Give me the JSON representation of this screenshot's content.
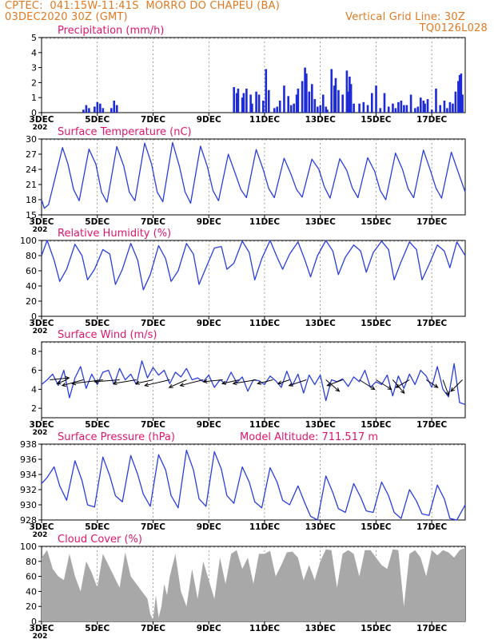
{
  "header": {
    "line1": "CPTEC:  041:15W-11:41S  MORRO DO CHAPEU (BA)",
    "line2": "03DEC2020 30Z (GMT)",
    "grid_note": "Vertical Grid Line: 30Z",
    "code": "TQ0126L028",
    "model_altitude": "Model Altitude: 711.517 m"
  },
  "colors": {
    "header": "#e07a22",
    "panel_title": "#e0156e",
    "line": "#2a3ee0",
    "bar": "#1c2ad8",
    "cloud": "#a8a8a8",
    "vector": "#000000"
  },
  "x_axis": {
    "tick_labels": [
      "3DEC",
      "5DEC",
      "7DEC",
      "9DEC",
      "11DEC",
      "13DEC",
      "15DEC",
      "17DEC"
    ],
    "tick_days": [
      0,
      2,
      4,
      6,
      8,
      10,
      12,
      14
    ],
    "range_days": [
      0,
      15.2
    ],
    "start_label_year": "202"
  },
  "chart_data": [
    {
      "type": "bar",
      "title": "Precipitation (mm/h)",
      "ylim": [
        0,
        5
      ],
      "yticks": [
        "0",
        "1",
        "2",
        "3",
        "4",
        "5"
      ],
      "x": [
        1.5,
        1.6,
        1.7,
        1.9,
        2.0,
        2.1,
        2.2,
        2.5,
        2.6,
        2.7,
        6.9,
        7.0,
        7.05,
        7.2,
        7.25,
        7.35,
        7.5,
        7.55,
        7.7,
        7.8,
        7.95,
        8.05,
        8.15,
        8.35,
        8.45,
        8.55,
        8.7,
        8.85,
        8.95,
        9.05,
        9.15,
        9.2,
        9.35,
        9.45,
        9.5,
        9.6,
        9.7,
        9.8,
        9.9,
        10.0,
        10.1,
        10.2,
        10.25,
        10.4,
        10.5,
        10.55,
        10.65,
        10.8,
        10.95,
        11.0,
        11.05,
        11.1,
        11.2,
        11.4,
        11.55,
        11.7,
        11.85,
        12.0,
        12.15,
        12.3,
        12.45,
        12.6,
        12.7,
        12.8,
        12.9,
        13.0,
        13.1,
        13.25,
        13.4,
        13.5,
        13.6,
        13.7,
        13.75,
        13.85,
        14.0,
        14.15,
        14.3,
        14.45,
        14.55,
        14.65,
        14.75,
        14.85,
        14.95,
        15.0,
        15.05,
        15.1
      ],
      "values": [
        0.2,
        0.5,
        0.3,
        0.4,
        0.7,
        0.6,
        0.3,
        0.3,
        0.8,
        0.5,
        1.7,
        1.3,
        1.6,
        1.0,
        1.3,
        1.6,
        1.2,
        0.6,
        1.4,
        1.2,
        0.8,
        2.9,
        1.5,
        0.3,
        0.4,
        0.8,
        1.8,
        1.1,
        0.5,
        0.6,
        1.2,
        1.6,
        2.1,
        3.0,
        2.6,
        1.4,
        1.9,
        0.9,
        0.4,
        0.5,
        1.2,
        0.4,
        0.2,
        2.9,
        1.8,
        2.3,
        1.5,
        1.2,
        2.8,
        1.4,
        2.4,
        1.9,
        0.6,
        0.6,
        0.7,
        0.5,
        1.3,
        1.8,
        0.3,
        1.3,
        0.4,
        0.6,
        0.3,
        0.7,
        0.8,
        0.5,
        0.5,
        1.2,
        0.3,
        0.4,
        1.0,
        0.8,
        0.6,
        0.9,
        0.2,
        1.6,
        0.5,
        0.8,
        0.3,
        0.7,
        0.6,
        1.4,
        2.1,
        2.5,
        2.6,
        1.2
      ]
    },
    {
      "type": "line",
      "title": "Surface Temperature (nC)",
      "ylim": [
        15,
        30
      ],
      "yticks": [
        "15",
        "18",
        "21",
        "24",
        "27",
        "30"
      ],
      "x": [
        0.0,
        0.1,
        0.25,
        0.45,
        0.75,
        0.95,
        1.15,
        1.35,
        1.7,
        1.95,
        2.15,
        2.35,
        2.7,
        2.95,
        3.15,
        3.35,
        3.7,
        3.95,
        4.15,
        4.35,
        4.7,
        4.95,
        5.15,
        5.35,
        5.7,
        5.95,
        6.15,
        6.35,
        6.7,
        6.95,
        7.15,
        7.35,
        7.7,
        7.95,
        8.15,
        8.35,
        8.7,
        8.95,
        9.15,
        9.35,
        9.7,
        9.95,
        10.15,
        10.35,
        10.7,
        10.95,
        11.15,
        11.35,
        11.7,
        11.95,
        12.15,
        12.35,
        12.7,
        12.95,
        13.15,
        13.35,
        13.7,
        13.95,
        14.15,
        14.35,
        14.7,
        14.95,
        15.2
      ],
      "values": [
        18.0,
        16.3,
        17.0,
        21.5,
        28.3,
        25.0,
        20.0,
        17.8,
        28.0,
        25.0,
        19.5,
        17.5,
        28.5,
        24.6,
        19.5,
        17.8,
        29.2,
        25.0,
        19.5,
        17.6,
        29.3,
        24.5,
        19.5,
        17.3,
        28.6,
        24.5,
        19.8,
        17.8,
        27.0,
        23.2,
        20.0,
        18.4,
        27.9,
        24.0,
        20.2,
        18.4,
        26.2,
        23.0,
        20.0,
        18.5,
        26.0,
        24.0,
        20.5,
        18.3,
        26.1,
        23.8,
        20.3,
        18.4,
        26.3,
        23.6,
        19.8,
        18.0,
        27.2,
        24.0,
        20.2,
        18.4,
        27.8,
        23.8,
        20.3,
        18.3,
        27.4,
        23.4,
        19.5
      ]
    },
    {
      "type": "line",
      "title": "Relative Humidity (%)",
      "ylim": [
        0,
        100
      ],
      "yticks": [
        "0",
        "20",
        "40",
        "60",
        "80",
        "100"
      ],
      "x": [
        0.0,
        0.2,
        0.45,
        0.65,
        0.9,
        1.2,
        1.45,
        1.65,
        1.9,
        2.2,
        2.45,
        2.65,
        2.9,
        3.2,
        3.45,
        3.65,
        3.9,
        4.2,
        4.45,
        4.65,
        4.9,
        5.2,
        5.45,
        5.65,
        5.9,
        6.2,
        6.45,
        6.65,
        6.9,
        7.2,
        7.45,
        7.65,
        7.9,
        8.2,
        8.45,
        8.65,
        8.9,
        9.2,
        9.45,
        9.65,
        9.9,
        10.2,
        10.45,
        10.65,
        10.9,
        11.2,
        11.45,
        11.65,
        11.9,
        12.2,
        12.45,
        12.65,
        12.9,
        13.2,
        13.45,
        13.65,
        13.9,
        14.2,
        14.45,
        14.65,
        14.9,
        15.2
      ],
      "values": [
        80,
        100,
        74,
        46,
        62,
        95,
        80,
        48,
        62,
        88,
        82,
        42,
        62,
        96,
        74,
        35,
        55,
        93,
        76,
        46,
        60,
        96,
        82,
        42,
        64,
        90,
        92,
        62,
        70,
        99,
        84,
        48,
        76,
        100,
        78,
        62,
        82,
        98,
        74,
        52,
        80,
        100,
        86,
        55,
        78,
        94,
        86,
        58,
        84,
        99,
        88,
        48,
        72,
        98,
        88,
        48,
        68,
        94,
        86,
        64,
        98,
        80
      ]
    },
    {
      "type": "line",
      "title": "Surface Wind (m/s)",
      "ylim": [
        1,
        9
      ],
      "yticks": [
        "2",
        "4",
        "6",
        "8"
      ],
      "x": [
        0.0,
        0.2,
        0.4,
        0.6,
        0.8,
        1.0,
        1.2,
        1.4,
        1.6,
        1.8,
        2.0,
        2.2,
        2.4,
        2.6,
        2.8,
        3.0,
        3.2,
        3.4,
        3.6,
        3.8,
        4.0,
        4.2,
        4.4,
        4.6,
        4.8,
        5.0,
        5.2,
        5.4,
        5.6,
        5.8,
        6.0,
        6.2,
        6.4,
        6.6,
        6.8,
        7.0,
        7.2,
        7.4,
        7.6,
        7.8,
        8.0,
        8.2,
        8.4,
        8.6,
        8.8,
        9.0,
        9.2,
        9.4,
        9.6,
        9.8,
        10.0,
        10.2,
        10.4,
        10.6,
        10.8,
        11.0,
        11.2,
        11.4,
        11.6,
        11.8,
        12.0,
        12.2,
        12.4,
        12.6,
        12.8,
        13.0,
        13.2,
        13.4,
        13.6,
        13.8,
        14.0,
        14.2,
        14.4,
        14.6,
        14.8,
        15.0,
        15.2
      ],
      "values": [
        4.5,
        5.0,
        5.6,
        4.4,
        6.0,
        3.1,
        5.2,
        6.4,
        4.1,
        5.6,
        4.5,
        5.8,
        6.0,
        4.5,
        6.2,
        5.0,
        5.6,
        4.5,
        7.0,
        5.2,
        6.3,
        5.5,
        6.0,
        4.6,
        5.8,
        5.3,
        6.2,
        5.0,
        5.2,
        4.8,
        5.5,
        4.2,
        5.0,
        4.6,
        5.8,
        4.7,
        5.3,
        3.8,
        5.0,
        4.9,
        4.5,
        5.4,
        4.9,
        4.2,
        5.9,
        4.4,
        5.6,
        3.6,
        5.5,
        4.5,
        5.5,
        2.8,
        5.0,
        4.8,
        5.1,
        4.3,
        5.3,
        4.8,
        6.0,
        4.2,
        4.8,
        4.5,
        5.5,
        3.3,
        5.4,
        4.1,
        5.6,
        4.5,
        6.0,
        5.4,
        4.2,
        6.4,
        4.0,
        3.2,
        6.7,
        2.6,
        2.4
      ],
      "vectors": {
        "x": [
          0.3,
          0.9,
          1.5,
          2.2,
          2.8,
          3.4,
          4.0,
          4.6,
          5.2,
          5.8,
          6.5,
          7.1,
          7.7,
          8.3,
          8.9,
          9.5,
          10.2,
          10.8,
          11.4,
          12.0,
          12.6,
          13.2,
          13.8,
          14.4,
          15.1
        ],
        "u": [
          1.0,
          -0.5,
          -1.1,
          -1.6,
          -1.3,
          -1.2,
          -0.9,
          -1.3,
          -0.9,
          -1.2,
          -1.0,
          -0.9,
          -1.2,
          -0.8,
          -0.6,
          -0.9,
          0.7,
          -0.8,
          0.8,
          0.8,
          0.6,
          -0.7,
          0.6,
          0.3,
          -0.6
        ],
        "v": [
          0.1,
          -0.2,
          -0.3,
          -0.2,
          -0.1,
          -0.2,
          -0.2,
          -0.3,
          -0.4,
          -0.3,
          -0.1,
          -0.2,
          -0.2,
          -0.2,
          -0.2,
          -0.3,
          -0.6,
          -0.3,
          -0.5,
          -0.5,
          -0.7,
          -0.4,
          -0.4,
          -0.8,
          -0.6
        ]
      }
    },
    {
      "type": "line",
      "title": "Surface Pressure (hPa)",
      "ylim": [
        928,
        938
      ],
      "yticks": [
        "928",
        "930",
        "932",
        "934",
        "936",
        "938"
      ],
      "x": [
        0.0,
        0.2,
        0.45,
        0.65,
        0.9,
        1.2,
        1.45,
        1.65,
        1.9,
        2.2,
        2.45,
        2.65,
        2.9,
        3.2,
        3.45,
        3.65,
        3.9,
        4.2,
        4.45,
        4.65,
        4.9,
        5.2,
        5.45,
        5.65,
        5.9,
        6.2,
        6.45,
        6.65,
        6.9,
        7.2,
        7.45,
        7.65,
        7.9,
        8.2,
        8.45,
        8.65,
        8.9,
        9.2,
        9.45,
        9.65,
        9.9,
        10.2,
        10.45,
        10.65,
        10.9,
        11.2,
        11.45,
        11.65,
        11.9,
        12.2,
        12.45,
        12.65,
        12.9,
        13.2,
        13.45,
        13.65,
        13.9,
        14.2,
        14.45,
        14.65,
        14.9,
        15.2
      ],
      "values": [
        932.8,
        933.6,
        935.0,
        932.5,
        930.6,
        935.8,
        933.2,
        930.0,
        929.7,
        936.3,
        933.8,
        931.2,
        930.4,
        936.5,
        934.0,
        931.4,
        929.8,
        936.6,
        934.6,
        931.2,
        929.6,
        937.2,
        934.6,
        930.8,
        929.8,
        937.0,
        934.7,
        931.2,
        930.2,
        935.0,
        933.0,
        930.4,
        929.6,
        934.9,
        933.0,
        930.6,
        930.0,
        932.5,
        930.2,
        928.5,
        928.0,
        933.8,
        931.6,
        929.5,
        929.0,
        932.8,
        931.0,
        929.2,
        929.0,
        933.0,
        931.2,
        929.0,
        928.2,
        932.0,
        930.5,
        928.8,
        928.6,
        932.6,
        930.8,
        928.2,
        928.0,
        930.0
      ]
    },
    {
      "type": "area",
      "title": "Cloud Cover (%)",
      "ylim": [
        0,
        100
      ],
      "yticks": [
        "0",
        "20",
        "40",
        "60",
        "80",
        "100"
      ],
      "x": [
        0.0,
        0.2,
        0.4,
        0.6,
        0.8,
        1.0,
        1.2,
        1.4,
        1.6,
        1.8,
        2.0,
        2.2,
        2.4,
        2.6,
        2.8,
        3.0,
        3.2,
        3.4,
        3.6,
        3.8,
        3.9,
        4.0,
        4.1,
        4.2,
        4.3,
        4.4,
        4.5,
        4.6,
        4.8,
        5.0,
        5.2,
        5.4,
        5.6,
        5.8,
        6.0,
        6.2,
        6.4,
        6.6,
        6.8,
        7.0,
        7.2,
        7.4,
        7.6,
        7.8,
        8.0,
        8.2,
        8.4,
        8.6,
        8.8,
        9.0,
        9.2,
        9.4,
        9.6,
        9.8,
        10.0,
        10.2,
        10.4,
        10.6,
        10.8,
        11.0,
        11.2,
        11.4,
        11.6,
        11.8,
        12.0,
        12.2,
        12.4,
        12.6,
        12.8,
        13.0,
        13.2,
        13.4,
        13.6,
        13.8,
        14.0,
        14.2,
        14.4,
        14.6,
        14.8,
        15.0,
        15.2
      ],
      "values": [
        85,
        95,
        70,
        60,
        55,
        90,
        60,
        40,
        80,
        65,
        45,
        90,
        75,
        60,
        45,
        92,
        60,
        50,
        40,
        30,
        10,
        2,
        35,
        5,
        20,
        50,
        35,
        60,
        90,
        40,
        20,
        70,
        30,
        80,
        55,
        30,
        85,
        50,
        90,
        95,
        70,
        85,
        50,
        90,
        90,
        94,
        60,
        75,
        92,
        93,
        85,
        55,
        75,
        55,
        80,
        96,
        95,
        45,
        90,
        95,
        90,
        60,
        95,
        95,
        85,
        75,
        70,
        96,
        95,
        20,
        90,
        95,
        85,
        60,
        95,
        88,
        95,
        92,
        85,
        95,
        98
      ]
    }
  ]
}
